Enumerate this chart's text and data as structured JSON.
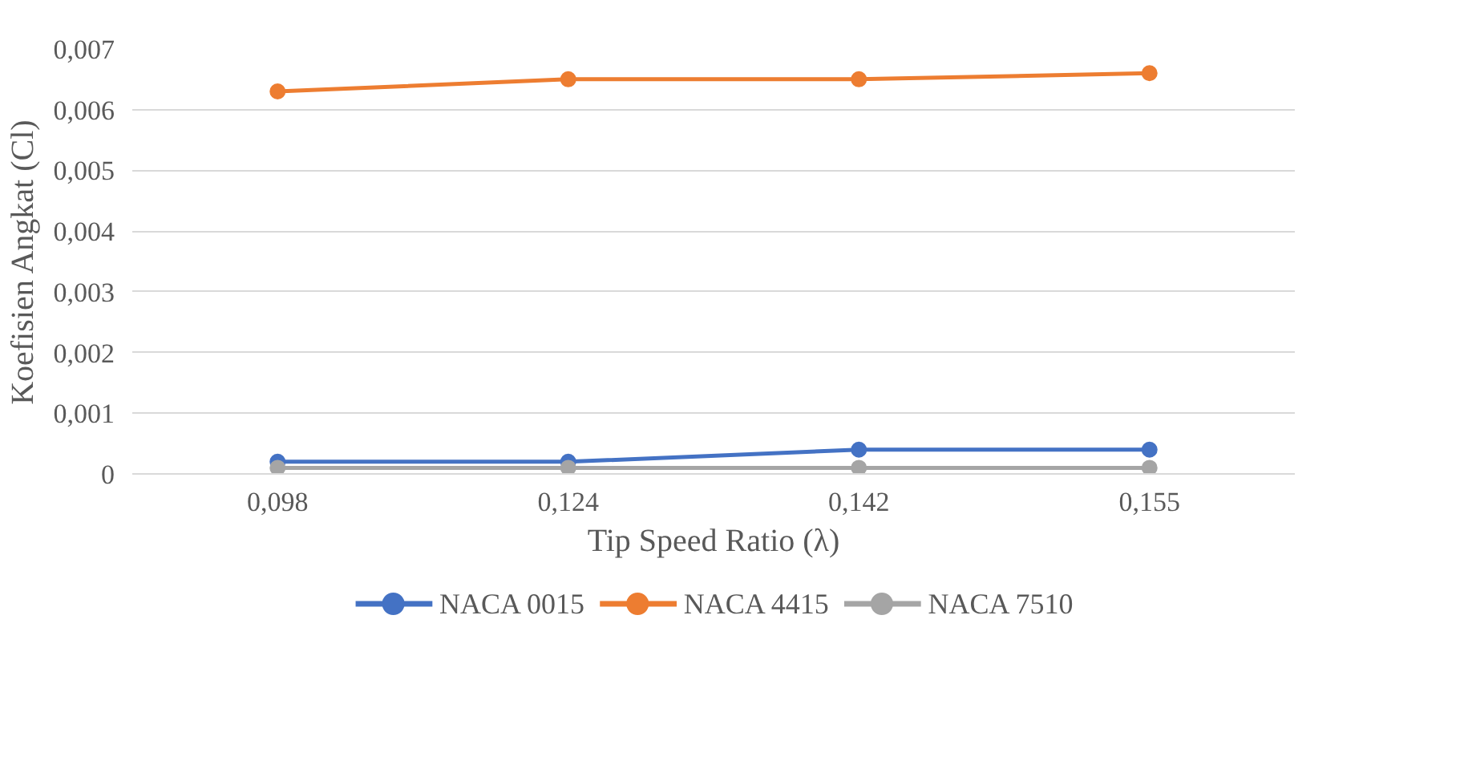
{
  "chart_data": {
    "type": "line",
    "xlabel": "Tip Speed Ratio (λ)",
    "ylabel": "Koefisien Angkat (Cl)",
    "categories": [
      "0,098",
      "0,124",
      "0,142",
      "0,155"
    ],
    "series": [
      {
        "name": "NACA 0015",
        "color": "#4472c4",
        "values": [
          0.0002,
          0.0002,
          0.0004,
          0.0004
        ]
      },
      {
        "name": "NACA 4415",
        "color": "#ed7d31",
        "values": [
          0.0063,
          0.0065,
          0.0065,
          0.0066
        ]
      },
      {
        "name": "NACA 7510",
        "color": "#a5a5a5",
        "values": [
          0.0001,
          0.0001,
          0.0001,
          0.0001
        ]
      }
    ],
    "ylim": [
      0,
      0.007
    ],
    "yticks": [
      0,
      {
        "value": 0.001,
        "label": "0,001"
      },
      {
        "value": 0.002,
        "label": "0,002"
      },
      {
        "value": 0.003,
        "label": "0,003"
      },
      {
        "value": 0.004,
        "label": "0,004"
      },
      {
        "value": 0.005,
        "label": "0,005"
      },
      {
        "value": 0.006,
        "label": "0,006"
      },
      {
        "value": 0.007,
        "label": "0,007"
      }
    ],
    "grid": "y",
    "legend": "bottom",
    "marker": "circle",
    "line_style": "solid"
  }
}
